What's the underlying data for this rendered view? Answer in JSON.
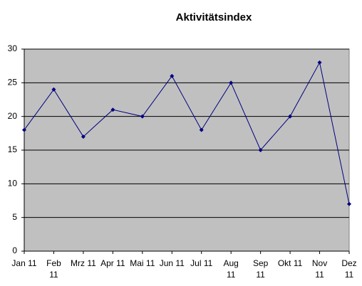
{
  "chart_data": {
    "type": "line",
    "title": "Aktivitätsindex",
    "categories": [
      "Jan 11",
      "Feb 11",
      "Mrz 11",
      "Apr 11",
      "Mai 11",
      "Jun 11",
      "Jul 11",
      "Aug 11",
      "Sep 11",
      "Okt 11",
      "Nov 11",
      "Dez 11"
    ],
    "values": [
      18,
      24,
      17,
      21,
      20,
      26,
      18,
      25,
      15,
      20,
      28,
      7
    ],
    "color": "#000080",
    "plot_background": "#c0c0c0",
    "ylim": [
      0,
      30
    ],
    "yticks": [
      0,
      5,
      10,
      15,
      20,
      25,
      30
    ],
    "grid": true
  }
}
